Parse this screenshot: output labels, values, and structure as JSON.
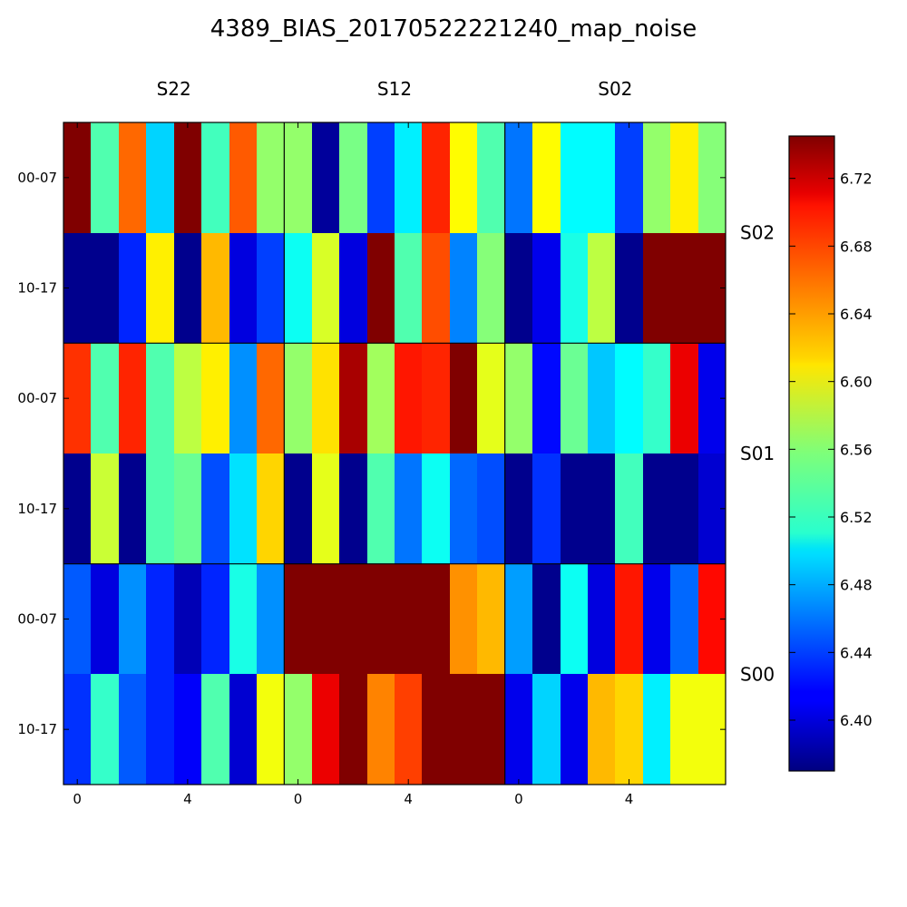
{
  "chart_data": {
    "type": "heatmap",
    "title": "4389_BIAS_20170522221240_map_noise",
    "colormap": "jet",
    "value_range": [
      6.37,
      6.745
    ],
    "column_groups": [
      "S22",
      "S12",
      "S02"
    ],
    "row_groups": [
      "S02",
      "S01",
      "S00"
    ],
    "x_tick_labels": [
      "0",
      "4",
      "0",
      "4",
      "0",
      "4"
    ],
    "x_tick_positions": [
      0,
      4,
      8,
      12,
      16,
      20
    ],
    "y_tick_labels": [
      "00-07",
      "10-17",
      "00-07",
      "10-17",
      "00-07",
      "10-17"
    ],
    "colorbar_ticks": [
      6.4,
      6.44,
      6.48,
      6.52,
      6.56,
      6.6,
      6.64,
      6.68,
      6.72
    ],
    "colorbar_tick_labels": [
      "6.40",
      "6.44",
      "6.48",
      "6.52",
      "6.56",
      "6.60",
      "6.64",
      "6.68",
      "6.72"
    ],
    "grid": [
      [
        6.745,
        6.54,
        6.66,
        6.495,
        6.745,
        6.535,
        6.665,
        6.565,
        6.565,
        6.38,
        6.555,
        6.44,
        6.505,
        6.685,
        6.605,
        6.54,
        6.46,
        6.605,
        6.51,
        6.51,
        6.44,
        6.565,
        6.61,
        6.56
      ],
      [
        6.375,
        6.375,
        6.43,
        6.61,
        6.375,
        6.63,
        6.405,
        6.44,
        6.515,
        6.59,
        6.405,
        6.745,
        6.54,
        6.67,
        6.465,
        6.56,
        6.375,
        6.41,
        6.52,
        6.58,
        6.375,
        6.745,
        6.745,
        6.745
      ],
      [
        6.68,
        6.54,
        6.685,
        6.54,
        6.58,
        6.61,
        6.47,
        6.66,
        6.565,
        6.615,
        6.73,
        6.57,
        6.69,
        6.685,
        6.745,
        6.595,
        6.565,
        6.42,
        6.55,
        6.49,
        6.51,
        6.53,
        6.705,
        6.41
      ],
      [
        6.375,
        6.585,
        6.375,
        6.54,
        6.55,
        6.445,
        6.5,
        6.62,
        6.375,
        6.595,
        6.375,
        6.54,
        6.46,
        6.515,
        6.455,
        6.445,
        6.375,
        6.435,
        6.375,
        6.375,
        6.535,
        6.375,
        6.375,
        6.4
      ],
      [
        6.45,
        6.405,
        6.47,
        6.43,
        6.39,
        6.43,
        6.52,
        6.47,
        6.745,
        6.745,
        6.745,
        6.745,
        6.745,
        6.745,
        6.645,
        6.63,
        6.475,
        6.375,
        6.515,
        6.405,
        6.69,
        6.41,
        6.455,
        6.695
      ],
      [
        6.435,
        6.53,
        6.45,
        6.43,
        6.415,
        6.54,
        6.4,
        6.6,
        6.565,
        6.705,
        6.745,
        6.65,
        6.675,
        6.745,
        6.745,
        6.745,
        6.41,
        6.495,
        6.41,
        6.63,
        6.62,
        6.505,
        6.6,
        6.6
      ]
    ]
  }
}
